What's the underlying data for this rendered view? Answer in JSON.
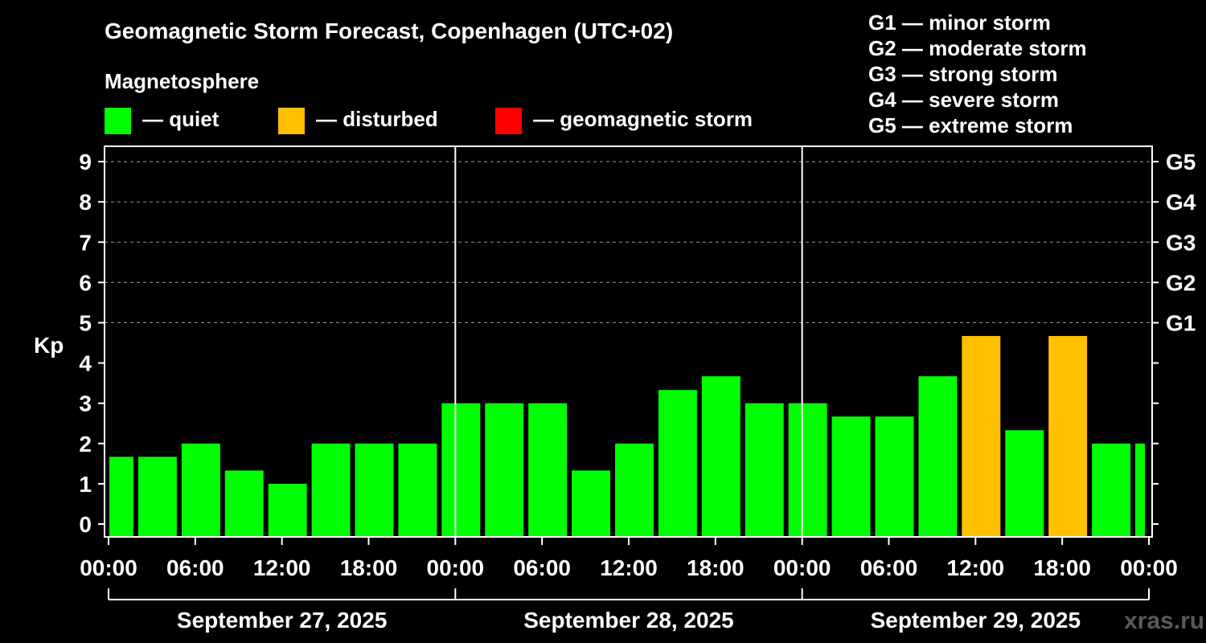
{
  "title": "Geomagnetic Storm Forecast, Copenhagen (UTC+02)",
  "magnetosphere_label": "Magnetosphere",
  "legend": [
    {
      "color": "#00ff00",
      "label": "— quiet"
    },
    {
      "color": "#ffc000",
      "label": "— disturbed"
    },
    {
      "color": "#ff0000",
      "label": "— geomagnetic storm"
    }
  ],
  "g_scale": [
    "G1 — minor storm",
    "G2 — moderate storm",
    "G3 — strong storm",
    "G4 — severe storm",
    "G5 — extreme storm"
  ],
  "watermark": "xras.ru",
  "chart_data": {
    "type": "bar",
    "title": "Geomagnetic Storm Forecast, Copenhagen (UTC+02)",
    "ylabel": "Kp",
    "ylim": [
      0,
      9
    ],
    "yticks": [
      0,
      1,
      2,
      3,
      4,
      5,
      6,
      7,
      8,
      9
    ],
    "grid_lines": [
      5,
      6,
      7,
      8,
      9
    ],
    "right_axis_labels": [
      {
        "kp": 5,
        "label": "G1"
      },
      {
        "kp": 6,
        "label": "G2"
      },
      {
        "kp": 7,
        "label": "G3"
      },
      {
        "kp": 8,
        "label": "G4"
      },
      {
        "kp": 9,
        "label": "G5"
      }
    ],
    "x_range_hours": [
      0,
      72
    ],
    "xticks": [
      {
        "hour": 0,
        "label": "00:00"
      },
      {
        "hour": 6,
        "label": "06:00"
      },
      {
        "hour": 12,
        "label": "12:00"
      },
      {
        "hour": 18,
        "label": "18:00"
      },
      {
        "hour": 24,
        "label": "00:00"
      },
      {
        "hour": 30,
        "label": "06:00"
      },
      {
        "hour": 36,
        "label": "12:00"
      },
      {
        "hour": 42,
        "label": "18:00"
      },
      {
        "hour": 48,
        "label": "00:00"
      },
      {
        "hour": 54,
        "label": "06:00"
      },
      {
        "hour": 60,
        "label": "12:00"
      },
      {
        "hour": 66,
        "label": "18:00"
      },
      {
        "hour": 72,
        "label": "00:00"
      }
    ],
    "days": [
      {
        "label": "September 27, 2025",
        "start": 0,
        "end": 24
      },
      {
        "label": "September 28, 2025",
        "start": 24,
        "end": 48
      },
      {
        "label": "September 29, 2025",
        "start": 48,
        "end": 72
      }
    ],
    "thresholds": {
      "disturbed": 4,
      "storm": 5
    },
    "bars": [
      {
        "start": 0,
        "end": 2,
        "kp": 1.67
      },
      {
        "start": 2,
        "end": 5,
        "kp": 1.67
      },
      {
        "start": 5,
        "end": 8,
        "kp": 2.0
      },
      {
        "start": 8,
        "end": 11,
        "kp": 1.33
      },
      {
        "start": 11,
        "end": 14,
        "kp": 1.0
      },
      {
        "start": 14,
        "end": 17,
        "kp": 2.0
      },
      {
        "start": 17,
        "end": 20,
        "kp": 2.0
      },
      {
        "start": 20,
        "end": 23,
        "kp": 2.0
      },
      {
        "start": 23,
        "end": 26,
        "kp": 3.0
      },
      {
        "start": 26,
        "end": 29,
        "kp": 3.0
      },
      {
        "start": 29,
        "end": 32,
        "kp": 3.0
      },
      {
        "start": 32,
        "end": 35,
        "kp": 1.33
      },
      {
        "start": 35,
        "end": 38,
        "kp": 2.0
      },
      {
        "start": 38,
        "end": 41,
        "kp": 3.33
      },
      {
        "start": 41,
        "end": 44,
        "kp": 3.67
      },
      {
        "start": 44,
        "end": 47,
        "kp": 3.0
      },
      {
        "start": 47,
        "end": 50,
        "kp": 3.0
      },
      {
        "start": 50,
        "end": 53,
        "kp": 2.67
      },
      {
        "start": 53,
        "end": 56,
        "kp": 2.67
      },
      {
        "start": 56,
        "end": 59,
        "kp": 3.67
      },
      {
        "start": 59,
        "end": 62,
        "kp": 4.67
      },
      {
        "start": 62,
        "end": 65,
        "kp": 2.33
      },
      {
        "start": 65,
        "end": 68,
        "kp": 4.67
      },
      {
        "start": 68,
        "end": 71,
        "kp": 2.0
      },
      {
        "start": 71,
        "end": 72,
        "kp": 2.0
      }
    ]
  }
}
